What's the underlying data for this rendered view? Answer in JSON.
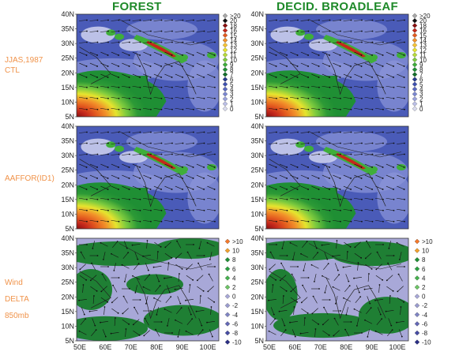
{
  "titles": {
    "left": "FOREST",
    "right": "DECID. BROADLEAF"
  },
  "row_labels": [
    {
      "lines": [
        "JJAS,1987",
        "CTL"
      ]
    },
    {
      "lines": [
        "AAFFOR(ID1)"
      ]
    },
    {
      "lines": [
        "Wind",
        "DELTA",
        "850mb"
      ]
    }
  ],
  "axes": {
    "lat_ticks": [
      "40N",
      "35N",
      "30N",
      "25N",
      "20N",
      "15N",
      "10N",
      "5N"
    ],
    "lon_ticks": [
      "50E",
      "60E",
      "70E",
      "80E",
      "90E",
      "100E"
    ]
  },
  "legend_top": {
    "labels": [
      ">20",
      "20",
      "18",
      "16",
      "15",
      "14",
      "13",
      "12",
      "11",
      "10",
      "9",
      "8",
      "7",
      "6",
      "5",
      "4",
      "3",
      "2",
      "1",
      "0"
    ],
    "colors": [
      "#a8a8a8",
      "#111111",
      "#8a1010",
      "#c4281c",
      "#e35a1f",
      "#f2922a",
      "#f6c233",
      "#e6e42e",
      "#b8db3a",
      "#7ecb3e",
      "#3fae3a",
      "#1f8f34",
      "#17702c",
      "#2a3d8f",
      "#3d4fb0",
      "#5968c2",
      "#7a86d0",
      "#9aa2dc",
      "#bcc0e8",
      "#dadcf0"
    ]
  },
  "legend_bottom": {
    "labels": [
      ">10",
      "10",
      "8",
      "6",
      "4",
      "2",
      "0",
      "-2",
      "-4",
      "-6",
      "-8",
      "-10"
    ],
    "colors": [
      "#f5782a",
      "#f2a12e",
      "#1f8f34",
      "#2aa040",
      "#45b24e",
      "#6cc465",
      "#a8a8d8",
      "#9a9ccf",
      "#7f84c4",
      "#6368b6",
      "#464ca4",
      "#2a2f86"
    ]
  }
}
